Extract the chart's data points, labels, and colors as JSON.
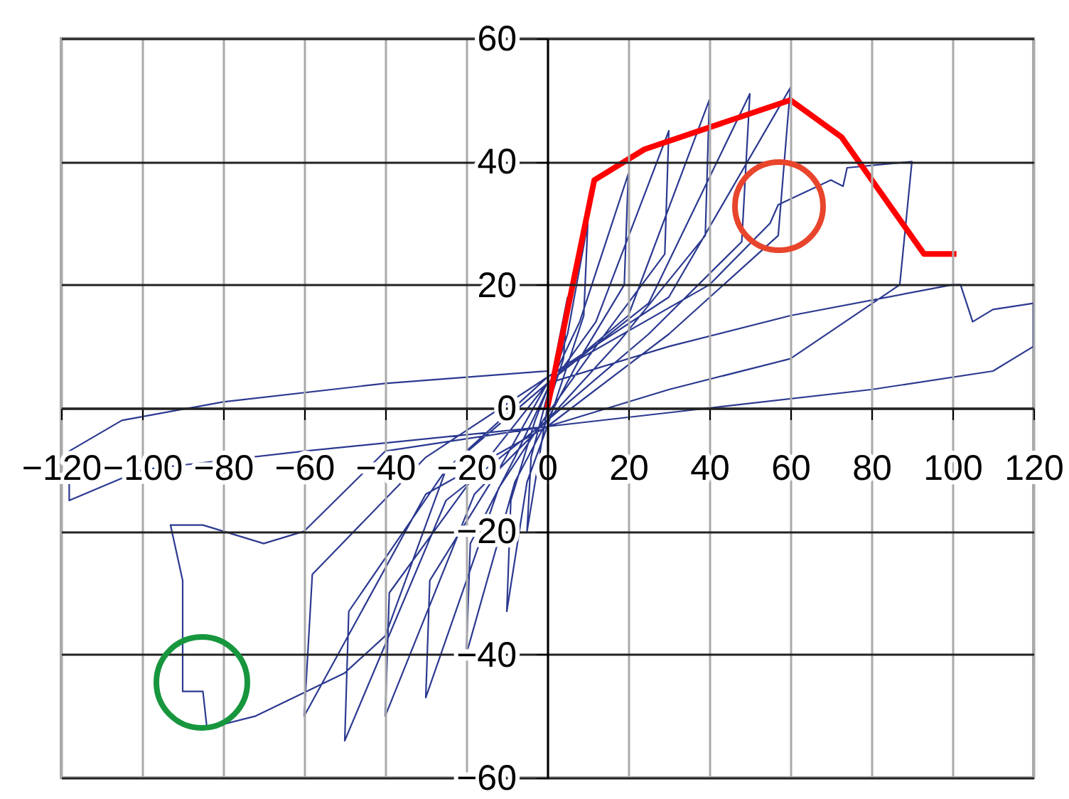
{
  "chart_data": {
    "type": "line",
    "xlim": [
      -120,
      120
    ],
    "ylim": [
      -60,
      60
    ],
    "xticks": [
      -120,
      -100,
      -80,
      -60,
      -40,
      -20,
      0,
      20,
      40,
      60,
      80,
      100,
      120
    ],
    "yticks": [
      -60,
      -40,
      -20,
      0,
      20,
      40,
      60
    ],
    "grid": true,
    "series": [
      {
        "color": "#2b3990",
        "x": [
          0,
          2,
          5,
          4,
          0,
          -2,
          -5,
          -4,
          0,
          5,
          10,
          9,
          3,
          0,
          -5,
          -10,
          -9,
          -3,
          0,
          8,
          20,
          19,
          8,
          0,
          -8,
          -20,
          -19,
          -8,
          0,
          12,
          30,
          29,
          12,
          0,
          -12,
          -30,
          -29,
          -12,
          0,
          20,
          40,
          39,
          18,
          0,
          -18,
          -40,
          -39,
          -18,
          0,
          25,
          50,
          48,
          25,
          0,
          -25,
          -50,
          -49,
          -25,
          0,
          30,
          60,
          57,
          30,
          0,
          -30,
          -60,
          -58,
          -30,
          0,
          40,
          55,
          57,
          70,
          73,
          74,
          90,
          87,
          60,
          30,
          0,
          -40,
          -60,
          -70,
          -85,
          -93,
          -90,
          -90,
          -85,
          -84,
          -72,
          -50,
          -40,
          -25,
          0,
          30,
          60,
          100,
          102,
          105,
          110,
          120,
          120,
          110,
          80,
          40,
          0,
          -60,
          -100,
          -118,
          -118,
          -105,
          -80,
          -40,
          0
        ],
        "values": [
          0,
          8,
          18,
          8,
          0,
          -8,
          -20,
          -8,
          2,
          12,
          30,
          15,
          3,
          -3,
          -12,
          -33,
          -15,
          -2,
          3,
          14,
          38,
          20,
          8,
          -2,
          -12,
          -40,
          -22,
          -8,
          3,
          14,
          45,
          25,
          10,
          -1,
          -13,
          -47,
          -28,
          -10,
          4,
          15,
          50,
          28,
          11,
          -2,
          -14,
          -50,
          -30,
          -11,
          4,
          17,
          51,
          27,
          12,
          -2,
          -15,
          -54,
          -33,
          -10,
          5,
          18,
          52,
          28,
          12,
          -3,
          -14,
          -50,
          -27,
          -8,
          5,
          20,
          30,
          33,
          37,
          36,
          39,
          40,
          20,
          8,
          3,
          -3,
          -7,
          -20,
          -22,
          -19,
          -19,
          -28,
          -46,
          -46,
          -52,
          -50,
          -43,
          -37,
          -10,
          4,
          10,
          15,
          20,
          20,
          14,
          16,
          17,
          10,
          6,
          3,
          0,
          -3,
          -7,
          -10,
          -15,
          -7,
          -2,
          1,
          4,
          6
        ]
      },
      {
        "color": "#ff0000",
        "x": [
          0,
          11.6,
          24,
          60,
          72.6,
          93,
          101
        ],
        "values": [
          0,
          37,
          42,
          50,
          44,
          25,
          25
        ]
      }
    ]
  }
}
